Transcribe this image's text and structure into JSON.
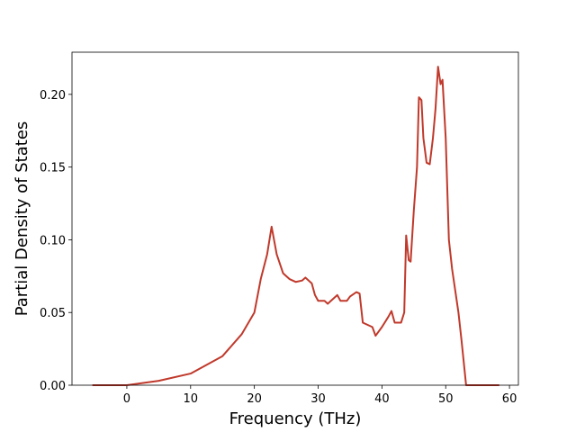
{
  "chart_data": {
    "type": "line",
    "xlabel": "Frequency (THz)",
    "ylabel": "Partial Density of States",
    "x": [
      -5.4,
      0,
      5,
      10,
      15,
      18,
      20,
      21,
      22,
      22.7,
      23.5,
      24.5,
      25.5,
      26.5,
      27.5,
      28,
      29,
      29.5,
      30,
      31,
      31.5,
      32,
      33,
      33.5,
      34.5,
      35,
      36,
      36.5,
      37,
      38,
      38.5,
      39,
      40,
      41,
      41.5,
      42,
      43,
      43.5,
      43.8,
      44.2,
      44.5,
      45,
      45.5,
      45.8,
      46.2,
      46.5,
      47,
      47.5,
      48,
      48.4,
      48.8,
      49.2,
      49.5,
      50,
      50.5,
      51,
      52,
      52.5,
      53.2,
      58.4
    ],
    "series": [
      {
        "color": "#c0392b",
        "values": [
          0,
          0,
          0.003,
          0.008,
          0.02,
          0.035,
          0.05,
          0.073,
          0.09,
          0.109,
          0.09,
          0.077,
          0.073,
          0.071,
          0.072,
          0.074,
          0.07,
          0.062,
          0.058,
          0.058,
          0.056,
          0.058,
          0.062,
          0.058,
          0.058,
          0.061,
          0.064,
          0.063,
          0.043,
          0.041,
          0.04,
          0.034,
          0.04,
          0.047,
          0.051,
          0.043,
          0.043,
          0.05,
          0.103,
          0.086,
          0.085,
          0.12,
          0.15,
          0.198,
          0.196,
          0.17,
          0.153,
          0.152,
          0.17,
          0.19,
          0.219,
          0.207,
          0.21,
          0.17,
          0.1,
          0.08,
          0.05,
          0.03,
          0,
          0
        ]
      }
    ],
    "xlim": [
      -8.6,
      61.4
    ],
    "ylim": [
      0,
      0.229
    ],
    "xticks": [
      0,
      10,
      20,
      30,
      40,
      50,
      60
    ],
    "yticks": [
      {
        "value": 0,
        "label": "0.00"
      },
      {
        "value": 0.05,
        "label": "0.05"
      },
      {
        "value": 0.1,
        "label": "0.10"
      },
      {
        "value": 0.15,
        "label": "0.15"
      },
      {
        "value": 0.2,
        "label": "0.20"
      }
    ]
  }
}
